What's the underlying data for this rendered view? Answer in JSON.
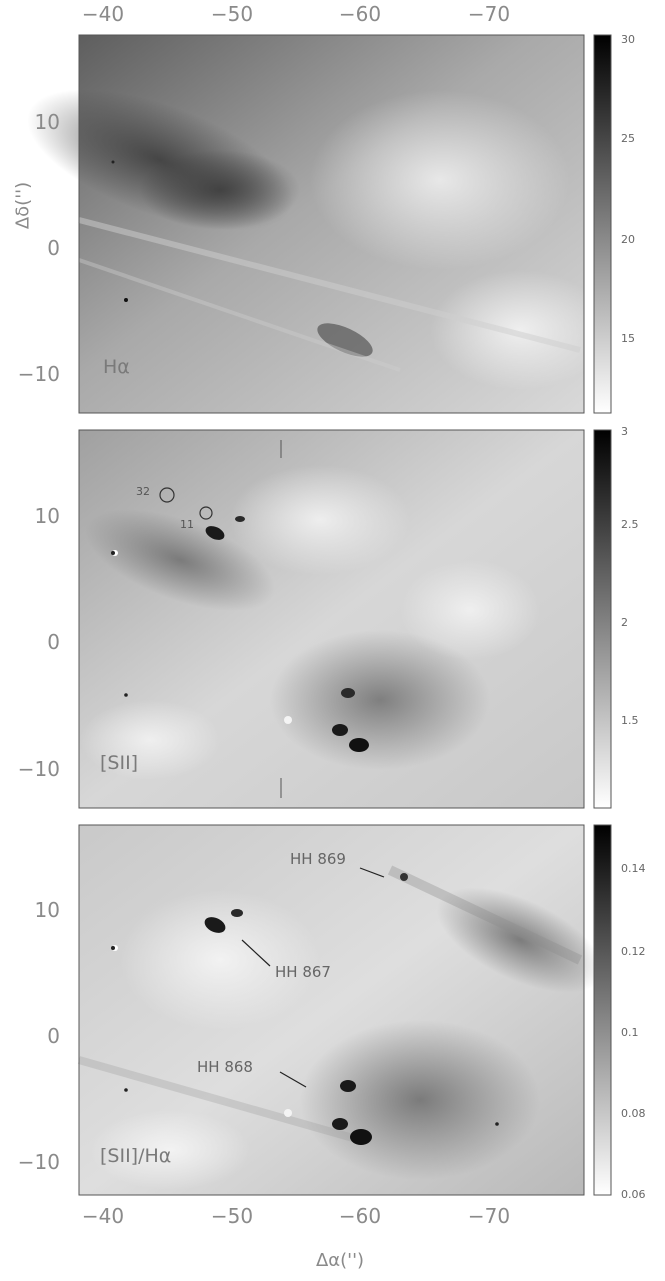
{
  "x_axis": {
    "label": "Δα('')",
    "ticks": [
      "−40",
      "−50",
      "−60",
      "−70"
    ],
    "tick_values": [
      -40,
      -50,
      -60,
      -70
    ]
  },
  "y_axis": {
    "label": "Δδ('')",
    "ticks": [
      "10",
      "0",
      "−10"
    ],
    "tick_values": [
      10,
      0,
      -10
    ]
  },
  "panels": [
    {
      "label": "Hα",
      "colorbar": {
        "ticks": [
          "30",
          "25",
          "20",
          "15"
        ],
        "range": [
          12,
          30
        ]
      }
    },
    {
      "label": "[SII]",
      "colorbar": {
        "ticks": [
          "3",
          "2.5",
          "2",
          "1.5"
        ],
        "range": [
          1.1,
          3
        ]
      },
      "markers": [
        "32",
        "11"
      ]
    },
    {
      "label": "[SII]/Hα",
      "colorbar": {
        "ticks": [
          "0.14",
          "0.12",
          "0.1",
          "0.08",
          "0.06"
        ],
        "range": [
          0.06,
          0.15
        ]
      },
      "annotations": [
        "HH 869",
        "HH 867",
        "HH 868"
      ]
    }
  ],
  "colors": {
    "frame": "#555555",
    "dark": "#1a1a1a",
    "tick_text": "#8a8a8a"
  }
}
